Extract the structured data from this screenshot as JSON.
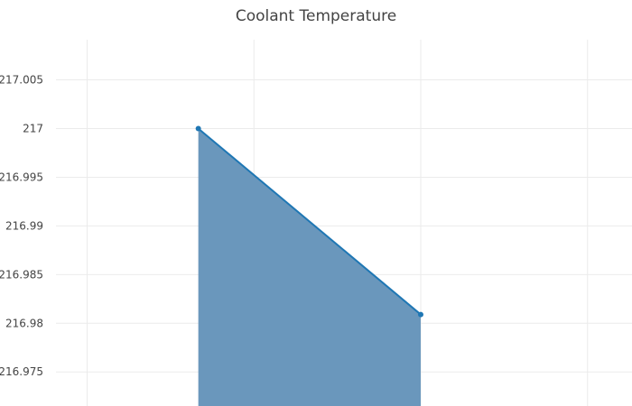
{
  "chart_data": {
    "type": "area",
    "title": "Coolant Temperature",
    "xlabel": "",
    "ylabel": "",
    "x": [
      1,
      2
    ],
    "series": [
      {
        "values": [
          217.0,
          216.9809
        ]
      }
    ],
    "xlim": [
      0.36,
      2.95
    ],
    "ylim": [
      216.9715,
      217.0095
    ],
    "yticks": [
      216.975,
      216.98,
      216.985,
      216.99,
      216.995,
      217,
      217.005
    ],
    "ytick_labels": [
      "216.975",
      "216.98",
      "216.985",
      "216.99",
      "216.995",
      "217",
      "217.005"
    ],
    "xgrid": [
      0.5,
      1.25,
      2.0,
      2.75
    ],
    "grid": true,
    "show_x_tick_labels": false,
    "line_color": "#1f77b4",
    "fill_color": "#6a97bc"
  }
}
